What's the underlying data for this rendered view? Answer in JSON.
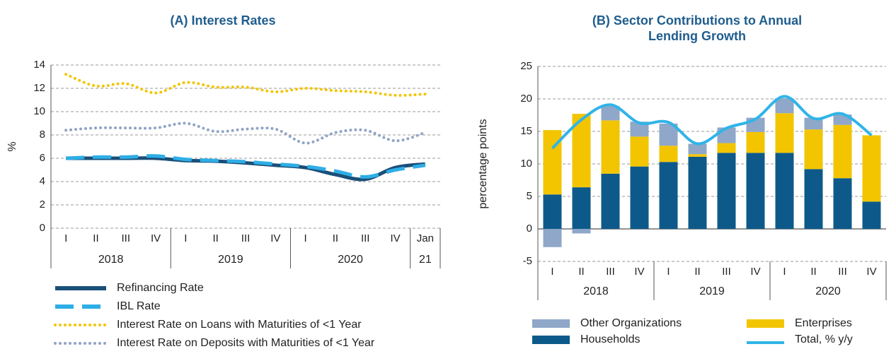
{
  "charts": [
    {
      "chart_data": {
        "type": "line",
        "title": "(A) Interest Rates",
        "ylabel": "%",
        "categories": [
          "I",
          "II",
          "III",
          "IV",
          "I",
          "II",
          "III",
          "IV",
          "I",
          "II",
          "III",
          "IV",
          "Jan"
        ],
        "x_groups": [
          "2018",
          "2019",
          "2020",
          "21"
        ],
        "x_group_sizes": [
          4,
          4,
          4,
          1
        ],
        "ylim": [
          0,
          14
        ],
        "yticks": [
          0,
          2,
          4,
          6,
          8,
          10,
          12,
          14
        ],
        "grid": true,
        "series": [
          {
            "name": "Refinancing Rate",
            "color": "#1a4f78",
            "style": "solid",
            "values": [
              6,
              6,
              6,
              6,
              5.8,
              5.75,
              5.6,
              5.4,
              5.2,
              4.6,
              4.2,
              5.2,
              5.5
            ]
          },
          {
            "name": "IBL Rate",
            "color": "#2eaee6",
            "style": "dashed",
            "values": [
              6,
              6.1,
              6.1,
              6.2,
              5.9,
              5.8,
              5.7,
              5.5,
              5.3,
              4.9,
              4.4,
              5.0,
              5.4
            ]
          },
          {
            "name": "Interest Rate on Loans with Maturities of <1 Year",
            "color": "#f2c500",
            "style": "dotted",
            "values": [
              13.2,
              12.2,
              12.4,
              11.6,
              12.5,
              12.1,
              12.1,
              11.7,
              12.0,
              11.8,
              11.7,
              11.4,
              11.5
            ]
          },
          {
            "name": "Interest Rate on Deposits with Maturities of <1 Year",
            "color": "#8fa3c4",
            "style": "dotted",
            "values": [
              8.4,
              8.6,
              8.6,
              8.6,
              9.0,
              8.3,
              8.5,
              8.5,
              7.3,
              8.2,
              8.4,
              7.5,
              8.2
            ]
          }
        ]
      }
    },
    {
      "chart_data": {
        "type": "stacked_bar_line",
        "title": [
          "(B) Sector Contributions to Annual",
          "Lending Growth"
        ],
        "ylabel": "percentage points",
        "categories": [
          "I",
          "II",
          "III",
          "IV",
          "I",
          "II",
          "III",
          "IV",
          "I",
          "II",
          "III",
          "IV"
        ],
        "x_groups": [
          "2018",
          "2019",
          "2020"
        ],
        "x_group_sizes": [
          4,
          4,
          4
        ],
        "ylim": [
          -5,
          25
        ],
        "yticks": [
          -5,
          0,
          5,
          10,
          15,
          20,
          25
        ],
        "grid": true,
        "series": [
          {
            "name": "Households",
            "color": "#0d5a8a",
            "kind": "bar",
            "values": [
              5.3,
              6.4,
              8.5,
              9.6,
              10.3,
              11.1,
              11.7,
              11.7,
              11.7,
              9.2,
              7.8,
              4.2
            ]
          },
          {
            "name": "Enterprises",
            "color": "#f2c500",
            "kind": "bar",
            "values": [
              9.9,
              11.3,
              8.2,
              4.6,
              2.5,
              0.4,
              1.5,
              3.2,
              6.1,
              6.1,
              8.2,
              10.2
            ]
          },
          {
            "name": "Other Organizations",
            "color": "#8fa7c8",
            "kind": "bar",
            "values": [
              -2.8,
              -0.7,
              2.2,
              2.3,
              3.4,
              1.6,
              2.4,
              2.2,
              2.3,
              1.8,
              1.6,
              0
            ]
          },
          {
            "name": "Total, % y/y",
            "color": "#30b4e8",
            "kind": "line",
            "values": [
              12.4,
              16.8,
              19.1,
              16.3,
              16.4,
              13.1,
              15.5,
              16.9,
              20.4,
              17.0,
              17.7,
              14.4
            ]
          }
        ]
      }
    }
  ]
}
